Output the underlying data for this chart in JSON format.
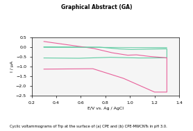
{
  "title": "Graphical Abstract (GA)",
  "xlabel": "E/V vs. Ag / AgCl",
  "ylabel": "I / μA",
  "xlim": [
    0.2,
    1.4
  ],
  "ylim": [
    -2.5,
    0.5
  ],
  "xticks": [
    0.2,
    0.4,
    0.6,
    0.8,
    1.0,
    1.2,
    1.4
  ],
  "yticks": [
    -2.5,
    -2.0,
    -1.5,
    -1.0,
    -0.5,
    0.0,
    0.5
  ],
  "caption": "Cyclic voltammograms of Trp at the surface of (a) CPE and (b) CPE-MWCNTs in pH 3.0.",
  "color_cyan": "#5ecba1",
  "color_pink": "#e8609a",
  "bg_color": "#f5f5f5"
}
